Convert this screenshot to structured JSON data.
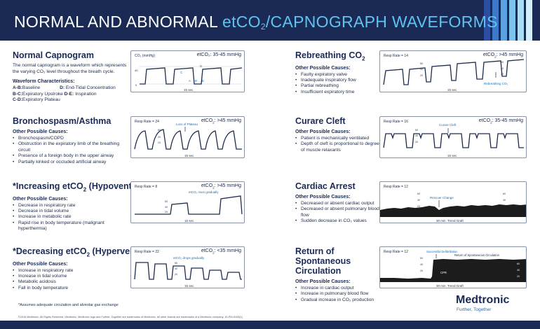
{
  "header": {
    "title_lead": "NORMAL AND ABNORMAL ",
    "title_et": "etCO",
    "title_sub": "2",
    "title_rest": "/CAPNOGRAPH WAVEFORMS"
  },
  "normal": {
    "title": "Normal Capnogram",
    "desc": "The normal capnogram is a waveform which represents the varying CO₂ level throughout the breath cycle.",
    "chars_title": "Waveform Characteristics:",
    "defs": [
      {
        "k": "A-B:",
        "v": "Baseline"
      },
      {
        "k": "D:",
        "v": "End-Tidal Concentration"
      },
      {
        "k": "B-C:",
        "v": "Expiratory Upstroke"
      },
      {
        "k": "D-E:",
        "v": "Inspiration"
      },
      {
        "k": "C-D:",
        "v": "Expiratory Plateau"
      }
    ],
    "card": {
      "label": "CO₂ (mmHg)",
      "range": "etCO₂: 35-45 mmHg",
      "y_top": "40",
      "y_bot": "0",
      "letters": [
        "A",
        "B",
        "C",
        "D",
        "E"
      ],
      "time": "15 sec."
    }
  },
  "bronch": {
    "title": "Bronchospasm/Asthma",
    "causes_title": "Other Possible Causes:",
    "causes": [
      "Bronchospasm/COPD",
      "Obstruction in the expiratory limb of the breathing circuit",
      "Presence of a foreign body in the upper airway",
      "Partially kinked or occluded artificial airway"
    ],
    "card": {
      "label": "Resp Rate = 24",
      "range_pre": "etCO",
      "range_sub": "2",
      "range_post": ": >45 mmHg",
      "annot": "Loss of Plateau",
      "ticks": [
        "50",
        "20",
        "10"
      ],
      "time": "15 sec."
    }
  },
  "hypovent": {
    "title_pre": "*Increasing etCO",
    "title_sub": "2",
    "title_post": " (Hypoventilation)",
    "causes_title": "Other Possible Causes:",
    "causes": [
      "Decrease in respiratory rate",
      "Decrease in tidal volume",
      "Increase in metabolic rate",
      "Rapid rise in body temperature (malignant hyperthermia)"
    ],
    "card": {
      "label": "Resp Rate = 8",
      "range_pre": "etCO",
      "range_sub": "2",
      "range_post": ": >45 mmHg",
      "annot": "etCO₂ rises gradually",
      "ticks": [
        "50",
        "40",
        "20"
      ],
      "time": "15 sec."
    }
  },
  "hypervent": {
    "title_pre": "*Decreasing etCO",
    "title_sub": "2",
    "title_post": " (Hyperventilation)",
    "causes_title": "Other Possible Causes:",
    "causes": [
      "Increase in respiratory rate",
      "Increase in tidal volume",
      "Metabolic acidosis",
      "Fall in body temperature"
    ],
    "card": {
      "label": "Resp Rate = 22",
      "range_pre": "etCO",
      "range_sub": "2",
      "range_post": ": <35 mmHg",
      "annot": "etCO₂ drops gradually",
      "ticks": [
        "50",
        "40",
        "20"
      ],
      "time": "15 sec."
    }
  },
  "rebreath": {
    "title_pre": "Rebreathing CO",
    "title_sub": "2",
    "causes_title": "Other Possible Causes:",
    "causes": [
      "Faulty expiratory valve",
      "Inadequate inspiratory flow",
      "Partial rebreathing",
      "Insufficient expiratory time"
    ],
    "card": {
      "label": "Resp Rate = 14",
      "range_pre": "etCO",
      "range_sub": "2",
      "range_post": ": >45 mmHg",
      "annot": "Rebreathing CO₂",
      "ticks": [
        "50",
        "40",
        "20"
      ],
      "time": "15 sec."
    }
  },
  "curare": {
    "title": "Curare Cleft",
    "causes_title": "Other Possible Causes:",
    "causes": [
      "Patient is mechanically ventilated",
      "Depth of cleft is proportional to degree of muscle relaxants"
    ],
    "card": {
      "label": "Resp Rate = 16",
      "range_pre": "etCO",
      "range_sub": "2",
      "range_post": ": 35-45 mmHg",
      "annot": "Curare Cleft",
      "ticks": [
        "50",
        "40",
        "20"
      ],
      "time": "15 sec."
    }
  },
  "arrest": {
    "title": "Cardiac Arrest",
    "causes_title": "Other Possible Causes:",
    "causes": [
      "Decreased or absent cardiac output",
      "Decreased or absent pulmonary blood flow",
      "Sudden decrease in CO₂ values"
    ],
    "card": {
      "label": "Resp Rate = 12",
      "annot": "Rescuer Change",
      "ticks": [
        "60",
        "40",
        "20"
      ],
      "time": "30 min. Trend Graft"
    }
  },
  "rosc": {
    "title": "Return of Spontaneous Circulation",
    "causes_title": "Other Possible Causes:",
    "causes": [
      "Increase in cardiac output",
      "Increase in pulmonary blood flow",
      "Gradual increase in CO₂ production"
    ],
    "card": {
      "label": "Resp Rate = 12",
      "annot1": "Successful Defibrillation",
      "annot2": "Return of Spontaneous Circulation",
      "annot3": "CPR",
      "ticks": [
        "60",
        "40",
        "20"
      ],
      "time": "30 min. Trend Graft"
    }
  },
  "footnote": "*Assumes adequate circulation and alveolar gas exchange",
  "legal": "©2016 Medtronic. All Rights Reserved. Medtronic, Medtronic logo and Further, Together are trademarks of Medtronic. All other brands are trademarks of a Medtronic company. 15-PM-0153(1)",
  "brand": {
    "name": "Medtronic",
    "tagline": "Further, Together"
  },
  "colors": {
    "navy": "#1b2a55",
    "accent": "#5ec3f0",
    "annot_blue": "#1e6fb0"
  }
}
